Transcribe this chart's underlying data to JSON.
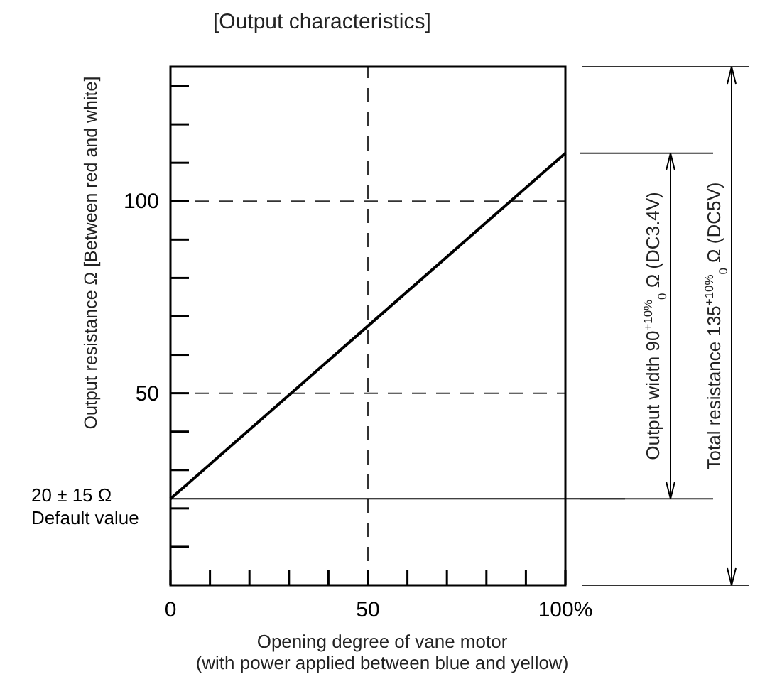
{
  "chart_data": {
    "type": "line",
    "title": "[Output characteristics]",
    "xlabel": "Opening degree of vane motor\n(with power applied between blue and yellow)",
    "ylabel": "Output resistance Ω [Between red and white]",
    "x": [
      0,
      100
    ],
    "series": [
      {
        "color": "#000000",
        "values": [
          22.5,
          112.5
        ]
      }
    ],
    "xlim": [
      0,
      100
    ],
    "ylim": [
      0,
      135
    ],
    "xticks": [
      0,
      {
        "value": 10,
        "label": null
      },
      {
        "value": 20,
        "label": null
      },
      {
        "value": 30,
        "label": null
      },
      {
        "value": 40,
        "label": null
      },
      50,
      {
        "value": 60,
        "label": null
      },
      {
        "value": 70,
        "label": null
      },
      {
        "value": 80,
        "label": null
      },
      {
        "value": 90,
        "label": null
      },
      {
        "value": 100,
        "label": "100%"
      }
    ],
    "yticks": [
      {
        "value": 10,
        "label": null
      },
      {
        "value": 20,
        "label": null
      },
      {
        "value": 30,
        "label": null
      },
      {
        "value": 40,
        "label": null
      },
      50,
      {
        "value": 60,
        "label": null
      },
      {
        "value": 70,
        "label": null
      },
      {
        "value": 80,
        "label": null
      },
      {
        "value": 90,
        "label": null
      },
      100,
      {
        "value": 110,
        "label": null
      },
      {
        "value": 120,
        "label": null
      },
      {
        "value": 130,
        "label": null
      }
    ],
    "grid": true,
    "ref_lines": [
      {
        "axis": "y",
        "value": 22.5,
        "label": "20 ± 15 Ω\nDefault value"
      }
    ],
    "annotations": [
      "Output width 90$^{+10%}$$_{0}$ Ω (DC3.4V)",
      "Total resistance 135$^{+10%}$$_{0}$ Ω (DC5V)"
    ]
  }
}
